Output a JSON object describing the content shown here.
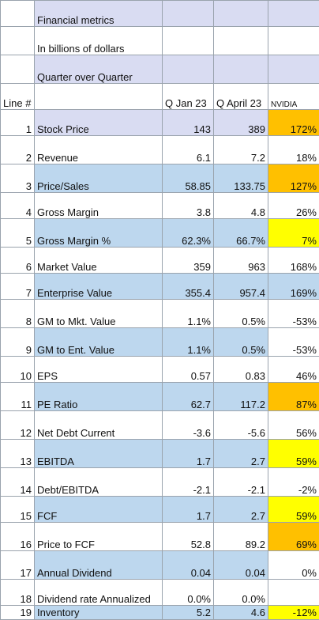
{
  "header": {
    "title": "Financial metrics",
    "subtitle": "In billions of dollars",
    "period_label": "Quarter over Quarter",
    "line_header": "Line #",
    "col_q1": "Q Jan 23",
    "col_q2": "Q April 23",
    "col_pct": "NVIDIA"
  },
  "colors": {
    "header_lavender": "#d9dcf2",
    "row_blue": "#bdd7ee",
    "highlight_orange": "#ffc000",
    "highlight_yellow": "#ffff00"
  },
  "rows": [
    {
      "line": "1",
      "metric": "Stock Price",
      "q1": "143",
      "q2": "389",
      "pct": "172%",
      "row_fill": "lavender",
      "pct_fill": "orange"
    },
    {
      "line": "2",
      "metric": "Revenue",
      "q1": "6.1",
      "q2": "7.2",
      "pct": "18%",
      "row_fill": "none",
      "pct_fill": "none"
    },
    {
      "line": "3",
      "metric": "Price/Sales",
      "q1": "58.85",
      "q2": "133.75",
      "pct": "127%",
      "row_fill": "blue",
      "pct_fill": "orange"
    },
    {
      "line": "4",
      "metric": "Gross Margin",
      "q1": "3.8",
      "q2": "4.8",
      "pct": "26%",
      "row_fill": "none",
      "pct_fill": "none"
    },
    {
      "line": "5",
      "metric": "Gross Margin %",
      "q1": "62.3%",
      "q2": "66.7%",
      "pct": "7%",
      "row_fill": "blue",
      "pct_fill": "yellow"
    },
    {
      "line": "6",
      "metric": "Market Value",
      "q1": "359",
      "q2": "963",
      "pct": "168%",
      "row_fill": "none",
      "pct_fill": "none"
    },
    {
      "line": "7",
      "metric": "Enterprise Value",
      "q1": "355.4",
      "q2": "957.4",
      "pct": "169%",
      "row_fill": "blue",
      "pct_fill": "blue"
    },
    {
      "line": "8",
      "metric": "GM to Mkt. Value",
      "q1": "1.1%",
      "q2": "0.5%",
      "pct": "-53%",
      "row_fill": "none",
      "pct_fill": "none"
    },
    {
      "line": "9",
      "metric": "GM to Ent. Value",
      "q1": "1.1%",
      "q2": "0.5%",
      "pct": "-53%",
      "row_fill": "blue",
      "pct_fill": "none"
    },
    {
      "line": "10",
      "metric": "EPS",
      "q1": "0.57",
      "q2": "0.83",
      "pct": "46%",
      "row_fill": "none",
      "pct_fill": "none"
    },
    {
      "line": "11",
      "metric": "PE Ratio",
      "q1": "62.7",
      "q2": "117.2",
      "pct": "87%",
      "row_fill": "blue",
      "pct_fill": "orange"
    },
    {
      "line": "12",
      "metric": "Net Debt Current",
      "q1": "-3.6",
      "q2": "-5.6",
      "pct": "56%",
      "row_fill": "none",
      "pct_fill": "none"
    },
    {
      "line": "13",
      "metric": "EBITDA",
      "q1": "1.7",
      "q2": "2.7",
      "pct": "59%",
      "row_fill": "blue",
      "pct_fill": "yellow"
    },
    {
      "line": "14",
      "metric": "Debt/EBITDA",
      "q1": "-2.1",
      "q2": "-2.1",
      "pct": "-2%",
      "row_fill": "none",
      "pct_fill": "none"
    },
    {
      "line": "15",
      "metric": "FCF",
      "q1": "1.7",
      "q2": "2.7",
      "pct": "59%",
      "row_fill": "blue",
      "pct_fill": "yellow"
    },
    {
      "line": "16",
      "metric": "Price to FCF",
      "q1": "52.8",
      "q2": "89.2",
      "pct": "69%",
      "row_fill": "none",
      "pct_fill": "orange"
    },
    {
      "line": "17",
      "metric": "Annual Dividend",
      "q1": "0.04",
      "q2": "0.04",
      "pct": "0%",
      "row_fill": "blue",
      "pct_fill": "none"
    },
    {
      "line": "18",
      "metric": "Dividend rate Annualized",
      "q1": "0.0%",
      "q2": "0.0%",
      "pct": "",
      "row_fill": "none",
      "pct_fill": "none"
    },
    {
      "line": "19",
      "metric": "Inventory",
      "q1": "5.2",
      "q2": "4.6",
      "pct": "-12%",
      "row_fill": "blue",
      "pct_fill": "yellow"
    }
  ]
}
